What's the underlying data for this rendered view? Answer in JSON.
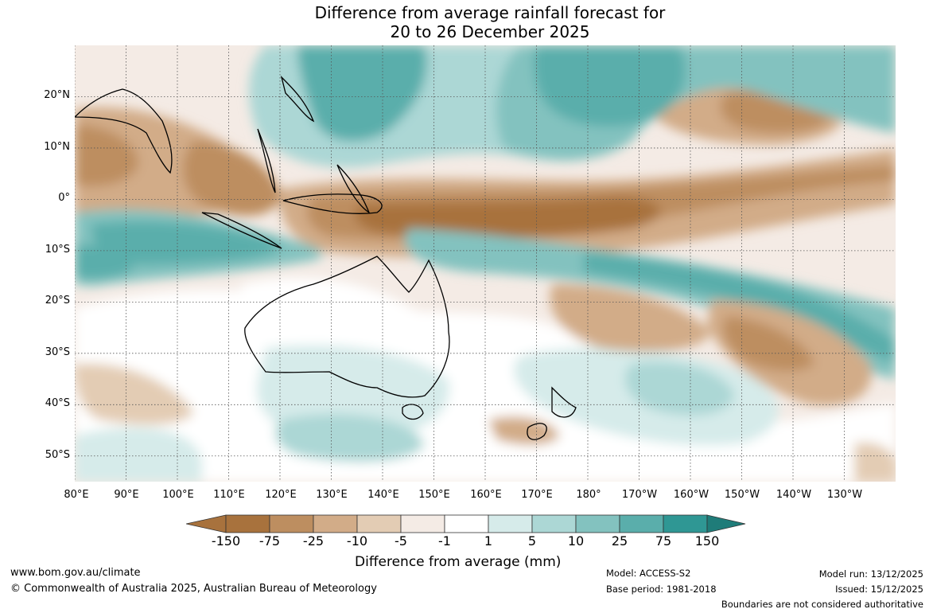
{
  "title": {
    "line1": "Difference from average rainfall forecast for",
    "line2": "20 to 26 December 2025"
  },
  "axes": {
    "lat_labels": [
      "20°N",
      "10°N",
      "0°",
      "10°S",
      "20°S",
      "30°S",
      "40°S",
      "50°S"
    ],
    "lat_values": [
      20,
      10,
      0,
      -10,
      -20,
      -30,
      -40,
      -50
    ],
    "lon_labels": [
      "80°E",
      "90°E",
      "100°E",
      "110°E",
      "120°E",
      "130°E",
      "140°E",
      "150°E",
      "160°E",
      "170°E",
      "180°",
      "170°W",
      "160°W",
      "150°W",
      "140°W",
      "130°W"
    ],
    "lon_values": [
      80,
      90,
      100,
      110,
      120,
      130,
      140,
      150,
      160,
      170,
      180,
      190,
      200,
      210,
      220,
      230
    ],
    "lon_range": [
      80,
      240
    ],
    "lat_range": [
      -55,
      30
    ]
  },
  "colorbar": {
    "title": "Difference from average (mm)",
    "ticks": [
      "-150",
      "-75",
      "-25",
      "-10",
      "-5",
      "-1",
      "1",
      "5",
      "10",
      "25",
      "75",
      "150"
    ],
    "colors": [
      "#a8723d",
      "#bd8e60",
      "#d2ac88",
      "#e3ccb4",
      "#f4ebe5",
      "#ffffff",
      "#d6ebea",
      "#acd7d5",
      "#83c2bf",
      "#5aaeab",
      "#2f9794",
      "#1f7c79"
    ]
  },
  "footer": {
    "website": "www.bom.gov.au/climate",
    "copyright": "© Commonwealth of Australia 2025, Australian Bureau of Meteorology",
    "model": "Model: ACCESS-S2",
    "base_period": "Base period: 1981-2018",
    "model_run": "Model run: 13/12/2025",
    "issued": "Issued: 15/12/2025",
    "disclaimer": "Boundaries are not considered authoritative"
  }
}
